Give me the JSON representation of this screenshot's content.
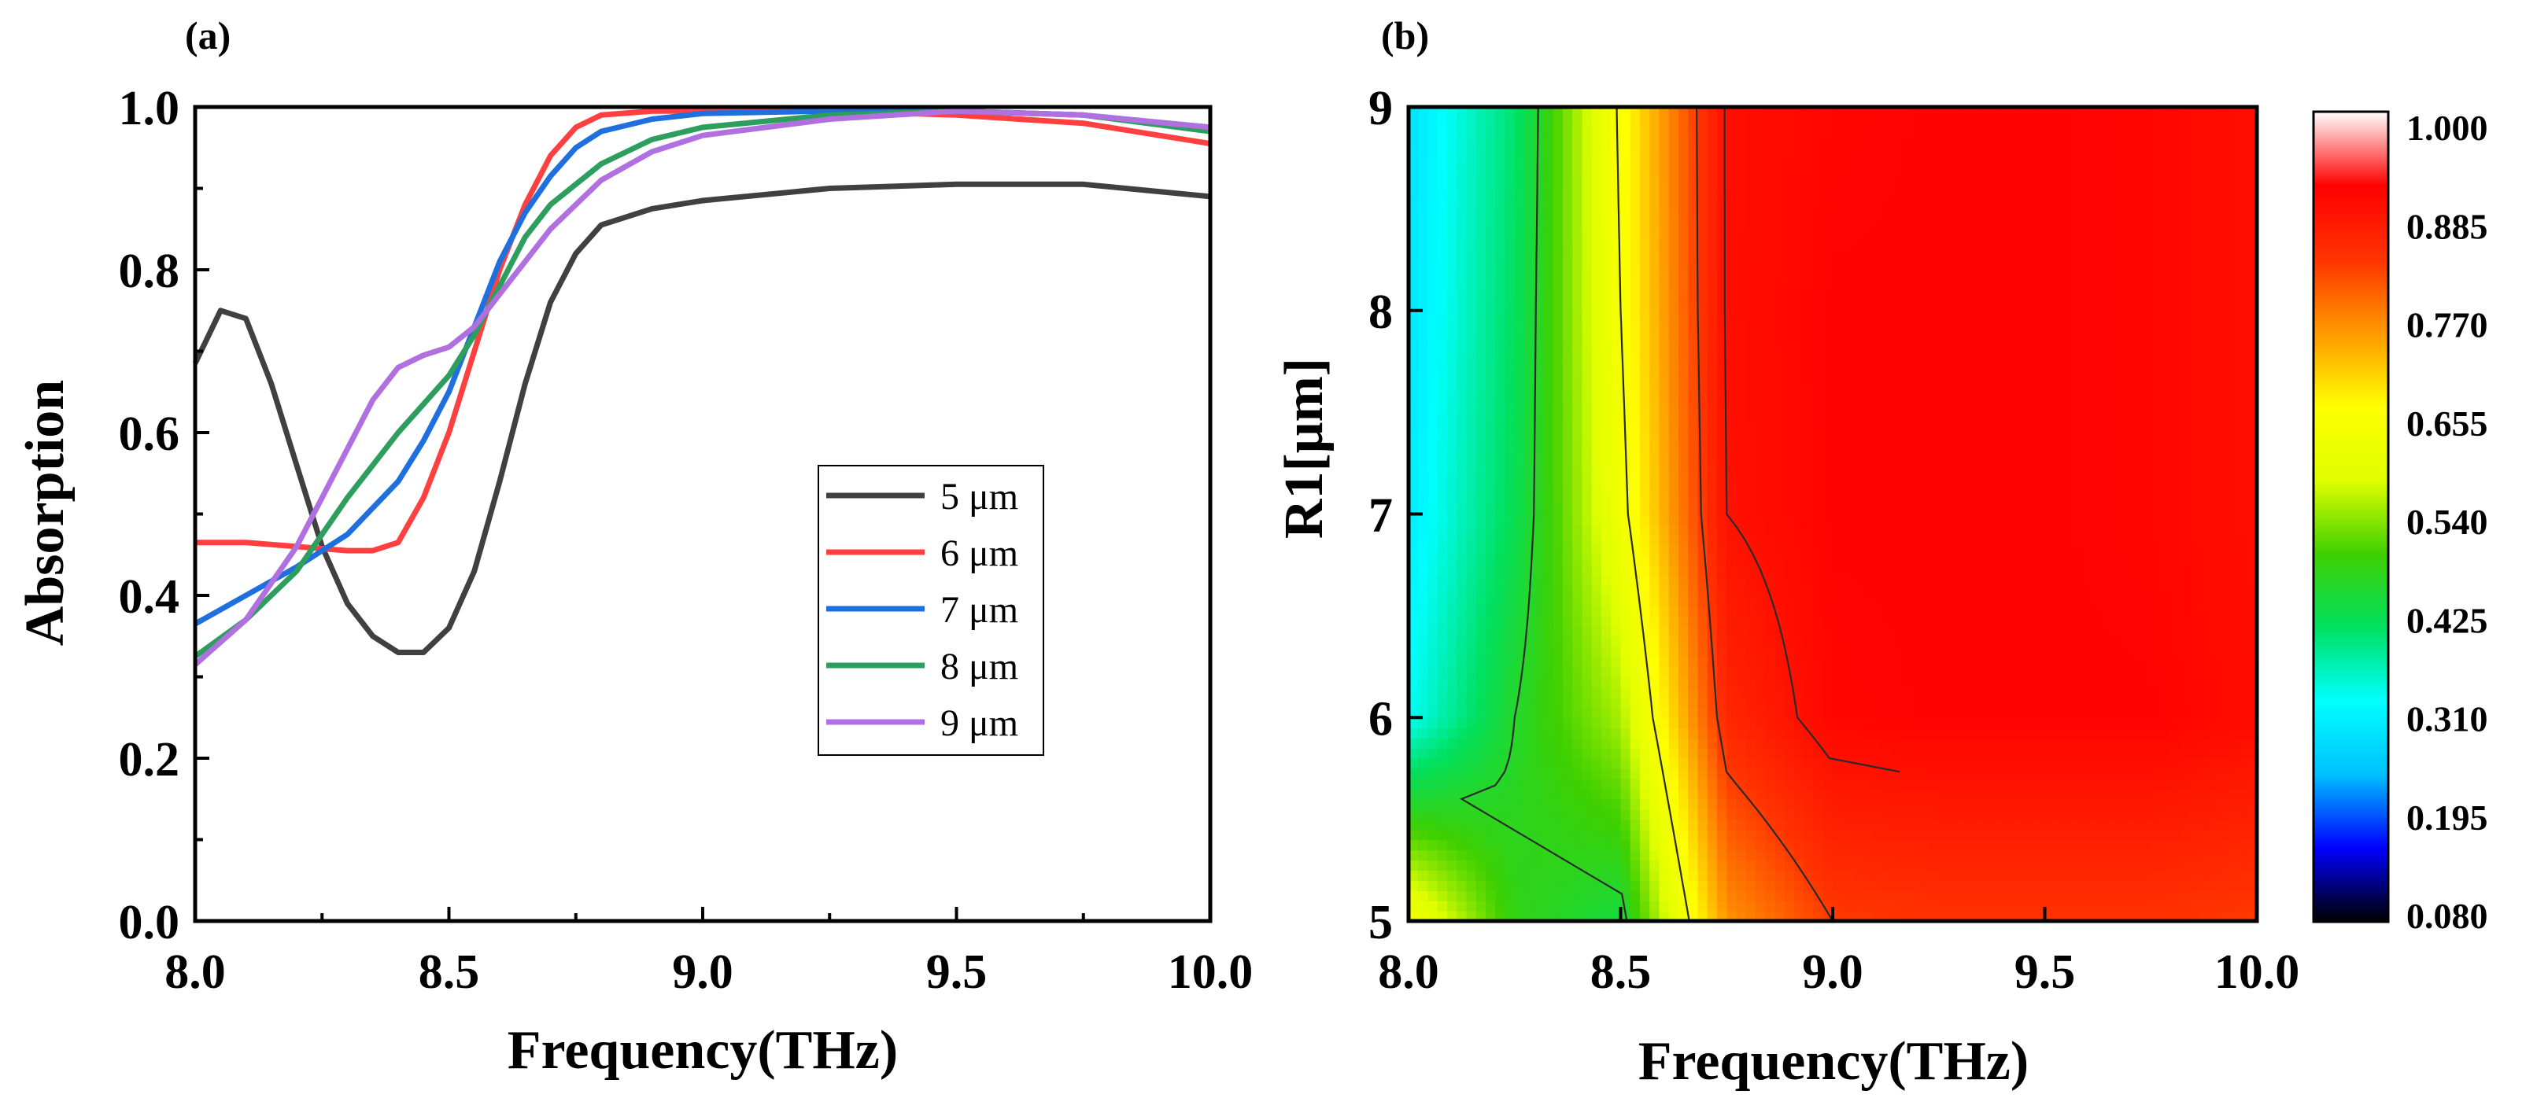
{
  "chart_data": [
    {
      "panel_label": "(a)",
      "type": "line",
      "xlabel": "Frequency(THz)",
      "ylabel": "Absorption",
      "xlim": [
        8.0,
        10.0
      ],
      "ylim": [
        0.0,
        1.0
      ],
      "xticks": [
        8.0,
        8.5,
        9.0,
        9.5,
        10.0
      ],
      "xtick_labels": [
        "8.0",
        "8.5",
        "9.0",
        "9.5",
        "10.0"
      ],
      "yticks": [
        0.0,
        0.2,
        0.4,
        0.6,
        0.8,
        1.0
      ],
      "ytick_labels": [
        "0.0",
        "0.2",
        "0.4",
        "0.6",
        "0.8",
        "1.0"
      ],
      "legend_position": "center-right",
      "series": [
        {
          "name": "5 μm",
          "color": "#404040",
          "x": [
            8.0,
            8.05,
            8.1,
            8.15,
            8.2,
            8.25,
            8.3,
            8.35,
            8.4,
            8.45,
            8.5,
            8.55,
            8.6,
            8.65,
            8.7,
            8.75,
            8.8,
            8.9,
            9.0,
            9.25,
            9.5,
            9.75,
            10.0
          ],
          "y": [
            0.685,
            0.75,
            0.74,
            0.66,
            0.56,
            0.46,
            0.39,
            0.35,
            0.33,
            0.33,
            0.36,
            0.43,
            0.54,
            0.66,
            0.76,
            0.82,
            0.855,
            0.875,
            0.885,
            0.9,
            0.905,
            0.905,
            0.89
          ]
        },
        {
          "name": "6 μm",
          "color": "#ff4040",
          "x": [
            8.0,
            8.1,
            8.2,
            8.3,
            8.35,
            8.4,
            8.45,
            8.5,
            8.55,
            8.6,
            8.65,
            8.7,
            8.75,
            8.8,
            8.9,
            9.0,
            9.25,
            9.5,
            9.75,
            10.0
          ],
          "y": [
            0.465,
            0.465,
            0.46,
            0.455,
            0.455,
            0.465,
            0.52,
            0.6,
            0.7,
            0.8,
            0.88,
            0.94,
            0.975,
            0.99,
            0.995,
            0.995,
            0.995,
            0.99,
            0.98,
            0.955
          ]
        },
        {
          "name": "7 μm",
          "color": "#1f6fdf",
          "x": [
            8.0,
            8.1,
            8.2,
            8.3,
            8.4,
            8.45,
            8.5,
            8.55,
            8.6,
            8.65,
            8.7,
            8.75,
            8.8,
            8.9,
            9.0,
            9.25,
            9.5,
            9.75,
            10.0
          ],
          "y": [
            0.365,
            0.4,
            0.435,
            0.475,
            0.54,
            0.59,
            0.65,
            0.73,
            0.81,
            0.87,
            0.915,
            0.95,
            0.97,
            0.985,
            0.992,
            0.995,
            0.995,
            0.99,
            0.975
          ]
        },
        {
          "name": "8 μm",
          "color": "#2e9e5e",
          "x": [
            8.0,
            8.1,
            8.2,
            8.3,
            8.4,
            8.5,
            8.55,
            8.6,
            8.65,
            8.7,
            8.8,
            8.9,
            9.0,
            9.25,
            9.5,
            9.75,
            10.0
          ],
          "y": [
            0.325,
            0.37,
            0.43,
            0.52,
            0.6,
            0.67,
            0.72,
            0.78,
            0.84,
            0.88,
            0.93,
            0.96,
            0.975,
            0.99,
            0.995,
            0.99,
            0.97
          ]
        },
        {
          "name": "9 μm",
          "color": "#b070e0",
          "x": [
            8.0,
            8.1,
            8.2,
            8.3,
            8.35,
            8.4,
            8.45,
            8.5,
            8.55,
            8.6,
            8.65,
            8.7,
            8.8,
            8.9,
            9.0,
            9.25,
            9.5,
            9.75,
            10.0
          ],
          "y": [
            0.315,
            0.37,
            0.46,
            0.58,
            0.64,
            0.68,
            0.695,
            0.705,
            0.73,
            0.77,
            0.81,
            0.85,
            0.91,
            0.945,
            0.965,
            0.985,
            0.995,
            0.99,
            0.975
          ]
        }
      ]
    },
    {
      "panel_label": "(b)",
      "type": "heatmap",
      "xlabel": "Frequency(THz)",
      "ylabel": "R1[μm]",
      "xlim": [
        8.0,
        10.0
      ],
      "ylim": [
        5,
        9
      ],
      "xticks": [
        8.0,
        8.5,
        9.0,
        9.5,
        10.0
      ],
      "xtick_labels": [
        "8.0",
        "8.5",
        "9.0",
        "9.5",
        "10.0"
      ],
      "yticks": [
        5,
        6,
        7,
        8,
        9
      ],
      "ytick_labels": [
        "5",
        "6",
        "7",
        "8",
        "9"
      ],
      "x": [
        8.0,
        8.25,
        8.5,
        8.75,
        9.0,
        9.25,
        9.5,
        9.75,
        10.0
      ],
      "y": [
        5,
        6,
        7,
        8,
        9
      ],
      "z": [
        [
          0.69,
          0.52,
          0.48,
          0.82,
          0.9,
          0.91,
          0.91,
          0.91,
          0.9
        ],
        [
          0.36,
          0.5,
          0.6,
          0.93,
          0.99,
          0.995,
          0.995,
          0.995,
          0.98
        ],
        [
          0.33,
          0.46,
          0.68,
          0.97,
          0.995,
          0.995,
          0.995,
          0.99,
          0.975
        ],
        [
          0.32,
          0.45,
          0.7,
          0.975,
          0.995,
          0.995,
          0.995,
          0.99,
          0.975
        ],
        [
          0.315,
          0.44,
          0.71,
          0.975,
          0.99,
          0.995,
          0.995,
          0.99,
          0.975
        ]
      ],
      "colorbar": {
        "min": 0.08,
        "max": 1.0,
        "tick_labels": [
          "0.080",
          "0.195",
          "0.310",
          "0.425",
          "0.540",
          "0.655",
          "0.770",
          "0.885",
          "1.000"
        ],
        "colors": [
          "#000000",
          "#0000ff",
          "#00c0ff",
          "#00ffff",
          "#00e060",
          "#40d000",
          "#e0ff00",
          "#ffff00",
          "#ff9900",
          "#ff3300",
          "#ff0000",
          "#ffffff"
        ]
      }
    }
  ]
}
